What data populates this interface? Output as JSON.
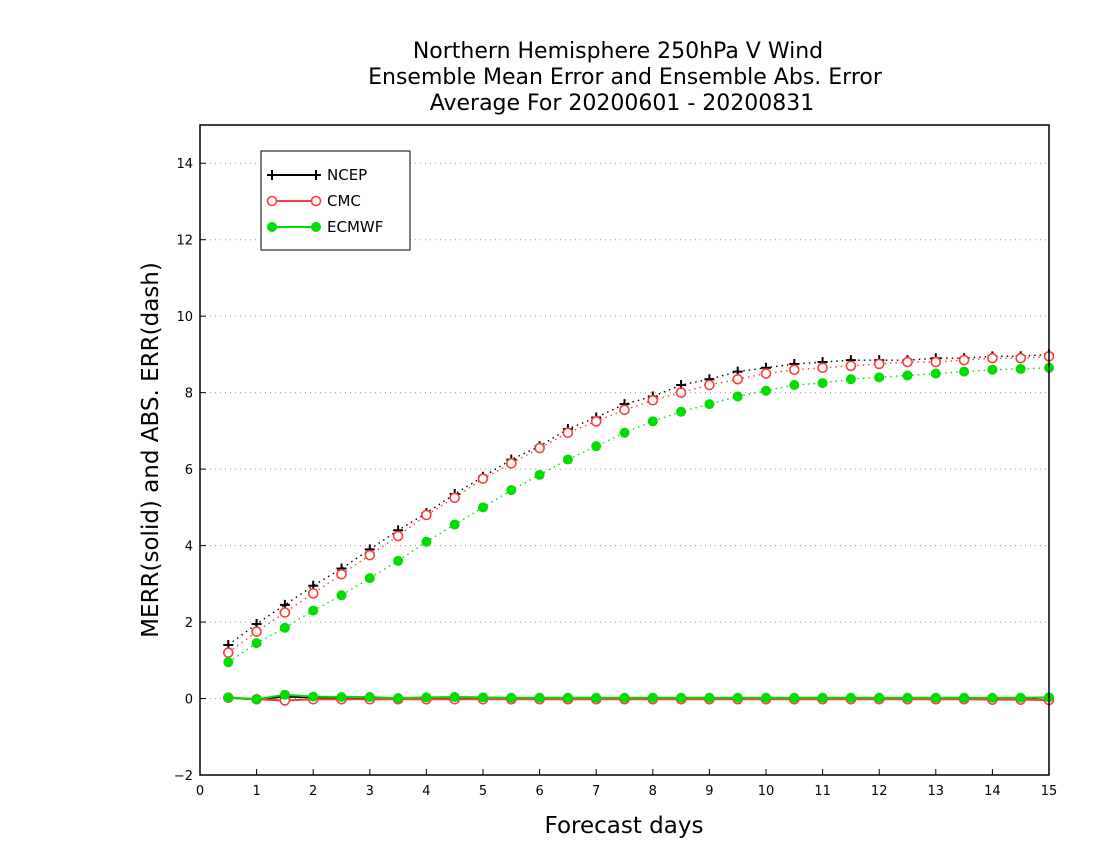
{
  "chart_data": {
    "type": "line",
    "title": [
      "Northern Hemisphere 250hPa V Wind",
      "Ensemble Mean Error and Ensemble Abs. Error",
      "Average For 20200601 - 20200831"
    ],
    "xlabel": "Forecast days",
    "ylabel": "MERR(solid) and ABS. ERR(dash)",
    "xlim": [
      0,
      15
    ],
    "ylim": [
      -2,
      15
    ],
    "xticks": [
      0,
      1,
      2,
      3,
      4,
      5,
      6,
      7,
      8,
      9,
      10,
      11,
      12,
      13,
      14,
      15
    ],
    "yticks": [
      -2,
      0,
      2,
      4,
      6,
      8,
      10,
      12,
      14
    ],
    "grid": "horizontal dotted",
    "legend_position": "top-left",
    "x": [
      0.5,
      1,
      1.5,
      2,
      2.5,
      3,
      3.5,
      4,
      4.5,
      5,
      5.5,
      6,
      6.5,
      7,
      7.5,
      8,
      8.5,
      9,
      9.5,
      10,
      10.5,
      11,
      11.5,
      12,
      12.5,
      13,
      13.5,
      14,
      14.5,
      15
    ],
    "series": [
      {
        "name": "NCEP",
        "color": "#000000",
        "marker": "plus",
        "abs_err": [
          1.4,
          1.95,
          2.45,
          2.95,
          3.4,
          3.9,
          4.4,
          4.85,
          5.35,
          5.8,
          6.25,
          6.6,
          7.05,
          7.35,
          7.7,
          7.9,
          8.2,
          8.35,
          8.55,
          8.65,
          8.75,
          8.8,
          8.85,
          8.85,
          8.85,
          8.9,
          8.9,
          8.95,
          8.95,
          9.0
        ],
        "mean_err": [
          0.02,
          -0.02,
          0.05,
          0.03,
          0.02,
          0.02,
          0.0,
          0.0,
          0.01,
          0.0,
          0.0,
          0.0,
          0.0,
          0.0,
          0.0,
          0.0,
          0.0,
          0.0,
          0.0,
          0.0,
          0.0,
          0.0,
          0.0,
          0.0,
          0.0,
          0.0,
          0.0,
          0.0,
          0.0,
          -0.05
        ]
      },
      {
        "name": "CMC",
        "color": "#ff3b3b",
        "marker": "open-circle",
        "abs_err": [
          1.2,
          1.75,
          2.25,
          2.75,
          3.25,
          3.75,
          4.25,
          4.8,
          5.25,
          5.75,
          6.15,
          6.55,
          6.95,
          7.25,
          7.55,
          7.8,
          8.0,
          8.2,
          8.35,
          8.5,
          8.6,
          8.65,
          8.7,
          8.75,
          8.8,
          8.8,
          8.85,
          8.9,
          8.9,
          8.95
        ],
        "mean_err": [
          0.02,
          -0.02,
          -0.05,
          -0.02,
          -0.02,
          -0.02,
          -0.02,
          -0.02,
          -0.02,
          -0.02,
          -0.02,
          -0.02,
          -0.02,
          -0.02,
          -0.02,
          -0.02,
          -0.02,
          -0.02,
          -0.02,
          -0.02,
          -0.02,
          -0.02,
          -0.02,
          -0.02,
          -0.02,
          -0.02,
          -0.02,
          -0.03,
          -0.03,
          -0.04
        ]
      },
      {
        "name": "ECMWF",
        "color": "#00dd00",
        "marker": "filled-circle",
        "abs_err": [
          0.95,
          1.45,
          1.85,
          2.3,
          2.7,
          3.15,
          3.6,
          4.1,
          4.55,
          5.0,
          5.45,
          5.85,
          6.25,
          6.6,
          6.95,
          7.25,
          7.5,
          7.7,
          7.9,
          8.05,
          8.2,
          8.25,
          8.35,
          8.4,
          8.45,
          8.5,
          8.55,
          8.6,
          8.62,
          8.65
        ],
        "mean_err": [
          0.03,
          -0.02,
          0.1,
          0.05,
          0.04,
          0.04,
          0.01,
          0.03,
          0.04,
          0.03,
          0.02,
          0.02,
          0.02,
          0.02,
          0.02,
          0.02,
          0.02,
          0.02,
          0.02,
          0.02,
          0.02,
          0.02,
          0.02,
          0.02,
          0.02,
          0.02,
          0.02,
          0.02,
          0.02,
          0.03
        ]
      }
    ]
  }
}
